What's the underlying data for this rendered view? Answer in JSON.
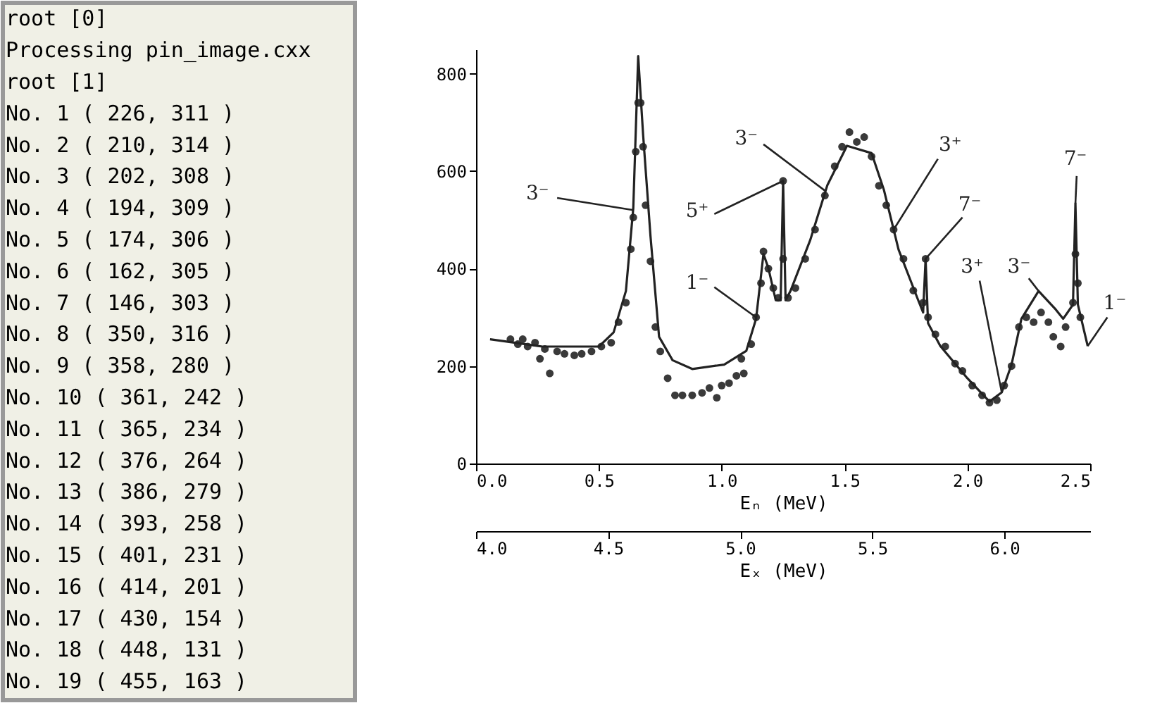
{
  "chart_data": [
    {
      "type": "other",
      "annotations": [
        "root [0]",
        "Processing pin_image.cxx",
        "root [1]",
        "No. 1  ( 226, 311 )",
        "No. 2  ( 210, 314 )",
        "No. 3  ( 202, 308 )",
        "No. 4  ( 194, 309 )",
        "No. 5  ( 174, 306 )",
        "No. 6  ( 162, 305 )",
        "No. 7  ( 146, 303 )",
        "No. 8  ( 350, 316 )",
        "No. 9  ( 358, 280 )",
        "No. 10  ( 361, 242 )",
        "No. 11  ( 365, 234 )",
        "No. 12  ( 376, 264 )",
        "No. 13  ( 386, 279 )",
        "No. 14  ( 393, 258 )",
        "No. 15  ( 401, 231 )",
        "No. 16  ( 414, 201 )",
        "No. 17  ( 430, 154 )",
        "No. 18  ( 448, 131 )",
        "No. 19  ( 455, 163 )"
      ]
    },
    {
      "type": "scatter",
      "xlabel": "Eₙ (MeV)",
      "x2label": "Eₓ (MeV)",
      "xlim": [
        0,
        2.5
      ],
      "xticks": [
        {
          "value": 0,
          "label": "0.0"
        },
        0.5,
        {
          "value": 1,
          "label": "1.0"
        },
        1.5,
        {
          "value": 2,
          "label": "2.0"
        },
        2.5
      ],
      "x2lim": [
        4.0,
        6.325
      ],
      "x2ticks": [
        {
          "value": 4,
          "label": "4.0"
        },
        4.5,
        {
          "value": 5,
          "label": "5.0"
        },
        5.5,
        {
          "value": 6,
          "label": "6.0"
        }
      ],
      "ylim": [
        0,
        850
      ],
      "yticks": [
        0,
        200,
        400,
        600,
        800
      ],
      "grid": false,
      "series": [
        {
          "type": "scatter",
          "color": "#3a3a3a",
          "marker": "circle",
          "x": [
            0.14,
            0.17,
            0.19,
            0.21,
            0.24,
            0.26,
            0.28,
            0.3,
            0.33,
            0.36,
            0.4,
            0.43,
            0.47,
            0.51,
            0.55,
            0.58,
            0.61,
            0.63,
            0.64,
            0.65,
            0.66,
            0.67,
            0.68,
            0.69,
            0.71,
            0.73,
            0.75,
            0.78,
            0.81,
            0.84,
            0.88,
            0.92,
            0.95,
            0.98,
            1.0,
            1.03,
            1.06,
            1.09,
            1.08,
            1.12,
            1.14,
            1.16,
            1.17,
            1.19,
            1.21,
            1.23,
            1.25,
            1.25,
            1.27,
            1.3,
            1.34,
            1.38,
            1.42,
            1.46,
            1.49,
            1.52,
            1.55,
            1.58,
            1.61,
            1.64,
            1.67,
            1.7,
            1.74,
            1.78,
            1.82,
            1.83,
            1.84,
            1.87,
            1.91,
            1.95,
            1.98,
            2.02,
            2.06,
            2.09,
            2.12,
            2.15,
            2.18,
            2.21,
            2.24,
            2.27,
            2.3,
            2.33,
            2.35,
            2.38,
            2.4,
            2.43,
            2.44,
            2.45,
            2.46
          ],
          "values": [
            255,
            245,
            255,
            240,
            248,
            215,
            235,
            185,
            230,
            225,
            222,
            225,
            230,
            240,
            248,
            290,
            330,
            440,
            505,
            640,
            740,
            740,
            650,
            530,
            415,
            280,
            230,
            175,
            140,
            140,
            140,
            145,
            155,
            135,
            160,
            165,
            180,
            185,
            215,
            245,
            300,
            370,
            435,
            400,
            360,
            340,
            420,
            580,
            340,
            360,
            420,
            480,
            550,
            610,
            650,
            680,
            660,
            670,
            630,
            570,
            530,
            480,
            420,
            355,
            330,
            420,
            300,
            265,
            240,
            205,
            190,
            160,
            140,
            125,
            130,
            160,
            200,
            280,
            300,
            290,
            310,
            290,
            260,
            240,
            280,
            330,
            430,
            370,
            300
          ]
        },
        {
          "type": "line",
          "color": "#222222",
          "marker": "none",
          "line_style": "solid",
          "x": [
            0.057,
            0.27,
            0.5,
            0.56,
            0.61,
            0.64,
            0.66,
            0.68,
            0.71,
            0.745,
            0.8,
            0.88,
            1.01,
            1.1,
            1.14,
            1.17,
            1.19,
            1.22,
            1.24,
            1.25,
            1.26,
            1.28,
            1.36,
            1.43,
            1.51,
            1.61,
            1.66,
            1.72,
            1.8,
            1.82,
            1.83,
            1.84,
            1.89,
            2.0,
            2.09,
            2.14,
            2.18,
            2.22,
            2.29,
            2.36,
            2.39,
            2.43,
            2.44,
            2.45,
            2.49
          ],
          "values": [
            255,
            240,
            240,
            269,
            354,
            524,
            836,
            675,
            467,
            260,
            212,
            194,
            203,
            231,
            297,
            430,
            401,
            335,
            335,
            580,
            335,
            354,
            458,
            571,
            652,
            637,
            562,
            439,
            335,
            310,
            420,
            288,
            241,
            175,
            127,
            146,
            203,
            297,
            354,
            316,
            297,
            326,
            534,
            326,
            241
          ]
        }
      ],
      "annotations": [
        {
          "text": "3⁻",
          "x": 0.64,
          "y": 520
        },
        {
          "text": "5⁺",
          "x": 1.25,
          "y": 580
        },
        {
          "text": "1⁻",
          "x": 1.14,
          "y": 300
        },
        {
          "text": "3⁻",
          "x": 1.42,
          "y": 560
        },
        {
          "text": "3⁺",
          "x": 1.7,
          "y": 480
        },
        {
          "text": "7⁻",
          "x": 1.83,
          "y": 420
        },
        {
          "text": "3⁺",
          "x": 2.14,
          "y": 146
        },
        {
          "text": "3⁻",
          "x": 2.29,
          "y": 354
        },
        {
          "text": "7⁻",
          "x": 2.44,
          "y": 534
        },
        {
          "text": "1⁻",
          "x": 2.49,
          "y": 241
        }
      ]
    }
  ]
}
